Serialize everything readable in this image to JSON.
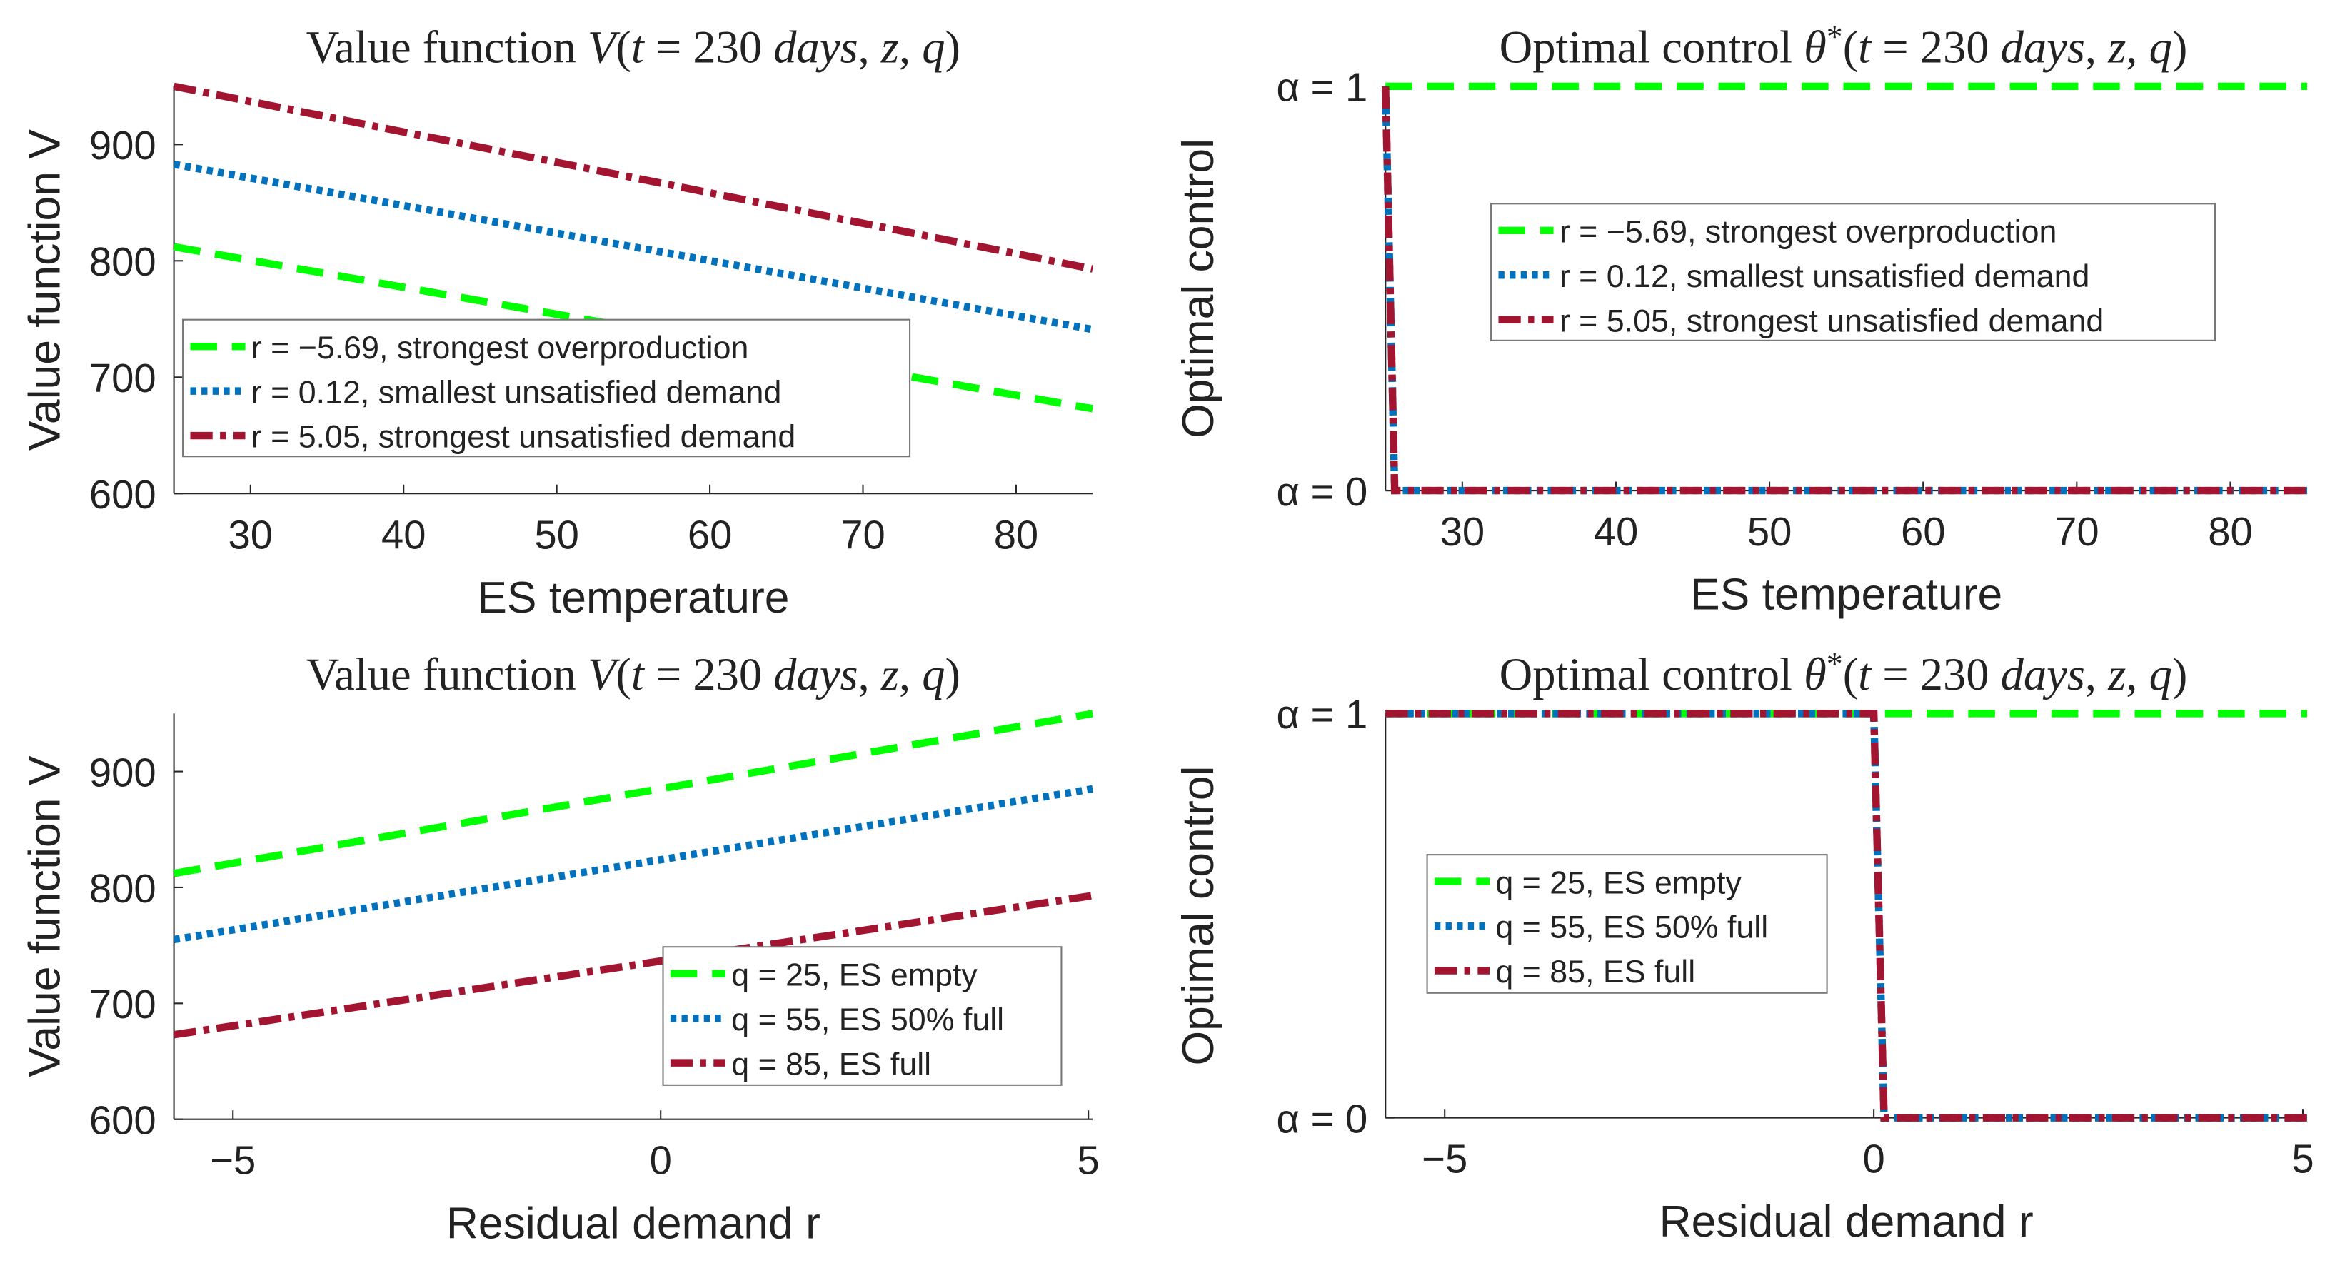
{
  "colors": {
    "green": "#00ff00",
    "blue": "#0072bd",
    "red": "#a2142f",
    "axis": "#262626"
  },
  "chart_data": [
    {
      "id": "tl",
      "type": "line",
      "title_parts": [
        [
          "Value function ",
          0
        ],
        [
          "V",
          1
        ],
        [
          "(",
          0
        ],
        [
          "t",
          1
        ],
        [
          " = 230 ",
          0
        ],
        [
          "days",
          1
        ],
        [
          ", ",
          0
        ],
        [
          "z",
          1
        ],
        [
          ", ",
          0
        ],
        [
          "q",
          1
        ],
        [
          ")",
          0
        ]
      ],
      "xlabel": "ES temperature",
      "ylabel": "Value function V",
      "xlim": [
        25,
        85
      ],
      "ylim": [
        600,
        950
      ],
      "xticks": [
        30,
        40,
        50,
        60,
        70,
        80
      ],
      "xtick_labels": [
        "30",
        "40",
        "50",
        "60",
        "70",
        "80"
      ],
      "yticks": [
        600,
        700,
        800,
        900
      ],
      "ytick_labels": [
        "600",
        "700",
        "800",
        "900"
      ],
      "legend_position": "lower-left",
      "series": [
        {
          "name": "r = −5.69, strongest overproduction",
          "style": "dash",
          "color": "green",
          "x": [
            25,
            85
          ],
          "y": [
            812,
            673
          ]
        },
        {
          "name": "r = 0.12, smallest unsatisfied demand",
          "style": "dot",
          "color": "blue",
          "x": [
            25,
            85
          ],
          "y": [
            883,
            741
          ]
        },
        {
          "name": "r = 5.05, strongest unsatisfied demand",
          "style": "dashdot",
          "color": "red",
          "x": [
            25,
            85
          ],
          "y": [
            950,
            793
          ]
        }
      ]
    },
    {
      "id": "tr",
      "type": "line",
      "title_parts": [
        [
          "Optimal control ",
          0
        ],
        [
          "θ",
          1
        ],
        [
          "*",
          0
        ],
        [
          "(",
          0
        ],
        [
          "t",
          1
        ],
        [
          " = 230 ",
          0
        ],
        [
          "days",
          1
        ],
        [
          ", ",
          0
        ],
        [
          "z",
          1
        ],
        [
          ", ",
          0
        ],
        [
          "q",
          1
        ],
        [
          ")",
          0
        ]
      ],
      "xlabel": "ES temperature",
      "ylabel": "Optimal control",
      "xlim": [
        25,
        85
      ],
      "ylim": [
        0,
        1
      ],
      "xticks": [
        30,
        40,
        50,
        60,
        70,
        80
      ],
      "xtick_labels": [
        "30",
        "40",
        "50",
        "60",
        "70",
        "80"
      ],
      "yticks": [
        0,
        1
      ],
      "ytick_labels": [
        "α = 0",
        "α = 1"
      ],
      "legend_position": "center",
      "series": [
        {
          "name": "r = −5.69, strongest overproduction",
          "style": "dash",
          "color": "green",
          "x": [
            25,
            85
          ],
          "y": [
            1,
            1
          ]
        },
        {
          "name": "r = 0.12, smallest unsatisfied demand",
          "style": "dot",
          "color": "blue",
          "x": [
            25,
            25.6,
            85
          ],
          "y": [
            1,
            0,
            0
          ]
        },
        {
          "name": "r = 5.05, strongest unsatisfied demand",
          "style": "dashdot",
          "color": "red",
          "x": [
            25,
            25.6,
            85
          ],
          "y": [
            1,
            0,
            0
          ]
        }
      ]
    },
    {
      "id": "bl",
      "type": "line",
      "title_parts": [
        [
          "Value function ",
          0
        ],
        [
          "V",
          1
        ],
        [
          "(",
          0
        ],
        [
          "t",
          1
        ],
        [
          " = 230 ",
          0
        ],
        [
          "days",
          1
        ],
        [
          ", ",
          0
        ],
        [
          "z",
          1
        ],
        [
          ", ",
          0
        ],
        [
          "q",
          1
        ],
        [
          ")",
          0
        ]
      ],
      "xlabel": "Residual demand r",
      "ylabel": "Value function V",
      "xlim": [
        -5.69,
        5.05
      ],
      "ylim": [
        600,
        950
      ],
      "xticks": [
        -5,
        0,
        5
      ],
      "xtick_labels": [
        "−5",
        "0",
        "5"
      ],
      "yticks": [
        600,
        700,
        800,
        900
      ],
      "ytick_labels": [
        "600",
        "700",
        "800",
        "900"
      ],
      "legend_position": "lower-right",
      "series": [
        {
          "name": "q = 25, ES empty",
          "style": "dash",
          "color": "green",
          "x": [
            -5.69,
            5.05
          ],
          "y": [
            812,
            950
          ]
        },
        {
          "name": "q = 55, ES 50% full",
          "style": "dot",
          "color": "blue",
          "x": [
            -5.69,
            5.05
          ],
          "y": [
            755,
            885
          ]
        },
        {
          "name": "q = 85, ES full",
          "style": "dashdot",
          "color": "red",
          "x": [
            -5.69,
            5.05
          ],
          "y": [
            673,
            793
          ]
        }
      ]
    },
    {
      "id": "br",
      "type": "line",
      "title_parts": [
        [
          "Optimal control ",
          0
        ],
        [
          "θ",
          1
        ],
        [
          "*",
          0
        ],
        [
          "(",
          0
        ],
        [
          "t",
          1
        ],
        [
          " = 230 ",
          0
        ],
        [
          "days",
          1
        ],
        [
          ", ",
          0
        ],
        [
          "z",
          1
        ],
        [
          ", ",
          0
        ],
        [
          "q",
          1
        ],
        [
          ")",
          0
        ]
      ],
      "xlabel": "Residual demand r",
      "ylabel": "Optimal control",
      "xlim": [
        -5.69,
        5.05
      ],
      "ylim": [
        0,
        1
      ],
      "xticks": [
        -5,
        0,
        5
      ],
      "xtick_labels": [
        "−5",
        "0",
        "5"
      ],
      "yticks": [
        0,
        1
      ],
      "ytick_labels": [
        "α = 0",
        "α = 1"
      ],
      "legend_position": "center-left",
      "series": [
        {
          "name": "q = 25, ES empty",
          "style": "dash",
          "color": "green",
          "x": [
            -5.69,
            5.05
          ],
          "y": [
            1,
            1
          ]
        },
        {
          "name": "q = 55, ES 50% full",
          "style": "dot",
          "color": "blue",
          "x": [
            -5.69,
            0.0,
            0.12,
            5.05
          ],
          "y": [
            1,
            1,
            0,
            0
          ]
        },
        {
          "name": "q = 85, ES full",
          "style": "dashdot",
          "color": "red",
          "x": [
            -5.69,
            0.0,
            0.12,
            5.05
          ],
          "y": [
            1,
            1,
            0,
            0
          ]
        }
      ]
    }
  ]
}
